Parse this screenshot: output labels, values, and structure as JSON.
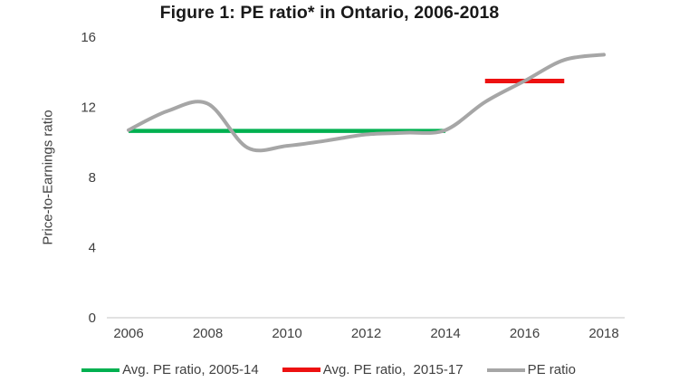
{
  "chart_data": {
    "type": "line",
    "title": "Figure 1: PE ratio* in Ontario, 2006-2018",
    "xlabel": "",
    "ylabel": "Price-to-Earnings ratio",
    "x": [
      2006,
      2007,
      2008,
      2009,
      2010,
      2011,
      2012,
      2013,
      2014,
      2015,
      2016,
      2017,
      2018
    ],
    "series": [
      {
        "name": "Avg. PE ratio, 2005-14",
        "type": "avg-line",
        "color": "#00B050",
        "value": 10.65,
        "x_span": [
          2006,
          2014
        ]
      },
      {
        "name": "Avg. PE ratio,  2015-17",
        "type": "avg-line",
        "color": "#ED1111",
        "value": 13.5,
        "x_span": [
          2015,
          2017
        ]
      },
      {
        "name": "PE ratio",
        "type": "main-line",
        "color": "#A6A6A6",
        "values": [
          10.7,
          11.8,
          12.2,
          9.7,
          9.8,
          10.1,
          10.45,
          10.55,
          10.7,
          12.3,
          13.5,
          14.7,
          15.0
        ]
      }
    ],
    "ylim": [
      0,
      16
    ],
    "yticks": [
      0,
      4,
      8,
      12,
      16
    ],
    "xticks": [
      2006,
      2008,
      2010,
      2012,
      2014,
      2016,
      2018
    ],
    "grid": false,
    "legend_position": "bottom",
    "axis_line_color": "#D9D9D9",
    "tick_label_color": "#404040"
  },
  "legend": [
    {
      "label": "Avg. PE ratio, 2005-14",
      "color": "#00B050"
    },
    {
      "label": "Avg. PE ratio,  2015-17",
      "color": "#ED1111"
    },
    {
      "label": "PE ratio",
      "color": "#A6A6A6"
    }
  ]
}
